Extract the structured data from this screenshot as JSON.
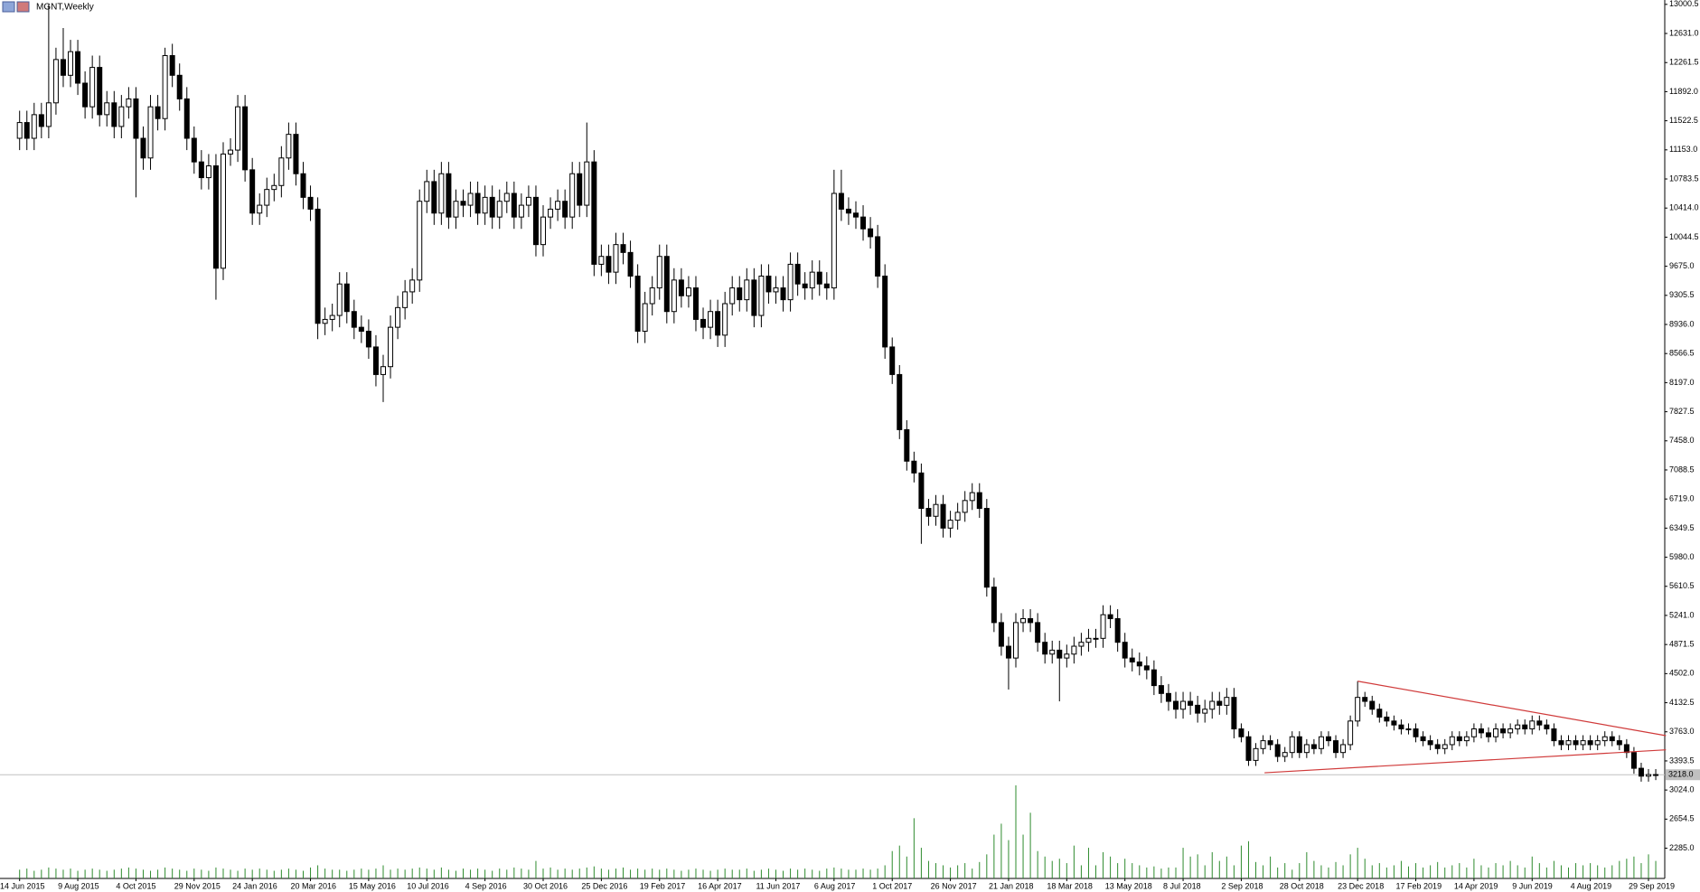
{
  "chart_data": {
    "type": "candlestick",
    "title": "MGNT,Weekly",
    "categories": [
      "14 Jun 2015",
      null,
      null,
      null,
      null,
      null,
      null,
      null,
      "9 Aug 2015",
      null,
      null,
      null,
      null,
      null,
      null,
      null,
      "4 Oct 2015",
      null,
      null,
      null,
      null,
      null,
      null,
      null,
      "29 Nov 2015",
      null,
      null,
      null,
      null,
      null,
      null,
      null,
      "24 Jan 2016",
      null,
      null,
      null,
      null,
      null,
      null,
      null,
      "20 Mar 2016",
      null,
      null,
      null,
      null,
      null,
      null,
      null,
      "15 May 2016",
      null,
      null,
      null,
      null,
      null,
      null,
      null,
      "10 Jul 2016",
      null,
      null,
      null,
      null,
      null,
      null,
      null,
      "4 Sep 2016",
      null,
      null,
      null,
      null,
      null,
      null,
      null,
      "30 Oct 2016",
      null,
      null,
      null,
      null,
      null,
      null,
      null,
      "25 Dec 2016",
      null,
      null,
      null,
      null,
      null,
      null,
      null,
      "19 Feb 2017",
      null,
      null,
      null,
      null,
      null,
      null,
      null,
      "16 Apr 2017",
      null,
      null,
      null,
      null,
      null,
      null,
      null,
      "11 Jun 2017",
      null,
      null,
      null,
      null,
      null,
      null,
      null,
      "6 Aug 2017",
      null,
      null,
      null,
      null,
      null,
      null,
      null,
      "1 Oct 2017",
      null,
      null,
      null,
      null,
      null,
      null,
      null,
      "26 Nov 2017",
      null,
      null,
      null,
      null,
      null,
      null,
      null,
      "21 Jan 2018",
      null,
      null,
      null,
      null,
      null,
      null,
      null,
      "18 Mar 2018",
      null,
      null,
      null,
      null,
      null,
      null,
      null,
      "13 May 2018",
      null,
      null,
      null,
      null,
      null,
      null,
      null,
      "8 Jul 2018",
      null,
      null,
      null,
      null,
      null,
      null,
      null,
      "2 Sep 2018",
      null,
      null,
      null,
      null,
      null,
      null,
      null,
      "28 Oct 2018",
      null,
      null,
      null,
      null,
      null,
      null,
      null,
      "23 Dec 2018",
      null,
      null,
      null,
      null,
      null,
      null,
      null,
      "17 Feb 2019",
      null,
      null,
      null,
      null,
      null,
      null,
      null,
      "14 Apr 2019",
      null,
      null,
      null,
      null,
      null,
      null,
      null,
      "9 Jun 2019",
      null,
      null,
      null,
      null,
      null,
      null,
      null,
      "4 Aug 2019",
      null,
      null,
      null,
      null,
      null,
      null,
      null,
      "29 Sep 2019",
      null
    ],
    "open": [
      11300,
      11500,
      11300,
      11600,
      11450,
      11750,
      12300,
      12100,
      12400,
      12000,
      11700,
      12200,
      11600,
      11750,
      11450,
      11700,
      11800,
      11300,
      11050,
      11700,
      11550,
      12350,
      12100,
      11800,
      11300,
      11000,
      10800,
      10950,
      9650,
      11100,
      11150,
      11700,
      10900,
      10350,
      10450,
      10650,
      10700,
      11050,
      11350,
      10850,
      10550,
      10400,
      8950,
      9000,
      9050,
      9450,
      9100,
      8900,
      8850,
      8650,
      8300,
      8400,
      8900,
      9150,
      9350,
      9500,
      10500,
      10750,
      10350,
      10850,
      10300,
      10500,
      10450,
      10600,
      10350,
      10550,
      10300,
      10500,
      10600,
      10300,
      10450,
      10550,
      9950,
      10300,
      10400,
      10500,
      10300,
      10850,
      10450,
      11000,
      9700,
      9800,
      9600,
      9950,
      9850,
      9550,
      8850,
      9200,
      9400,
      9800,
      9100,
      9500,
      9300,
      9400,
      9000,
      8900,
      9100,
      8800,
      9200,
      9400,
      9250,
      9500,
      9050,
      9550,
      9350,
      9400,
      9250,
      9700,
      9450,
      9400,
      9600,
      9450,
      9400,
      10600,
      10400,
      10350,
      10300,
      10150,
      10050,
      9550,
      8650,
      8300,
      7600,
      7200,
      7050,
      6600,
      6500,
      6650,
      6350,
      6450,
      6550,
      6700,
      6800,
      6600,
      5600,
      5150,
      4850,
      4700,
      5150,
      5200,
      5150,
      4900,
      4750,
      4800,
      4700,
      4750,
      4850,
      4900,
      4950,
      4950,
      5250,
      5200,
      4900,
      4700,
      4650,
      4600,
      4550,
      4350,
      4250,
      4150,
      4050,
      4150,
      4100,
      4000,
      4050,
      4150,
      4100,
      4200,
      3800,
      3700,
      3400,
      3550,
      3650,
      3600,
      3450,
      3500,
      3700,
      3500,
      3600,
      3550,
      3700,
      3650,
      3500,
      3600,
      3900,
      4200,
      4150,
      4050,
      3950,
      3900,
      3850,
      3800,
      3800,
      3700,
      3650,
      3600,
      3550,
      3600,
      3700,
      3650,
      3700,
      3800,
      3750,
      3700,
      3800,
      3750,
      3800,
      3850,
      3800,
      3900,
      3850,
      3800,
      3650,
      3600,
      3650,
      3600,
      3650,
      3600,
      3650,
      3700,
      3650,
      3600,
      3500,
      3300,
      3200,
      3220
    ],
    "high": [
      11650,
      11650,
      11750,
      11750,
      13000,
      12450,
      12700,
      12550,
      12550,
      12150,
      12350,
      12350,
      11900,
      11900,
      11850,
      11950,
      11950,
      11450,
      11850,
      11850,
      12450,
      12500,
      12250,
      11950,
      11450,
      11150,
      11100,
      11100,
      11250,
      11300,
      11850,
      11850,
      11050,
      10600,
      10800,
      10850,
      11200,
      11500,
      11500,
      11000,
      10700,
      10550,
      9150,
      9200,
      9600,
      9600,
      9250,
      9050,
      9000,
      8800,
      8550,
      9050,
      9300,
      9500,
      9650,
      10650,
      10900,
      10900,
      11000,
      11000,
      10650,
      10650,
      10750,
      10750,
      10700,
      10700,
      10650,
      10750,
      10750,
      10600,
      10700,
      10700,
      10450,
      10550,
      10650,
      10650,
      11000,
      11000,
      11500,
      11150,
      9950,
      9950,
      10100,
      10100,
      10000,
      9700,
      9350,
      9550,
      9950,
      9950,
      9650,
      9650,
      9550,
      9550,
      9150,
      9250,
      9250,
      9350,
      9550,
      9550,
      9650,
      9650,
      9700,
      9700,
      9550,
      9550,
      9850,
      9850,
      9600,
      9750,
      9750,
      9600,
      10900,
      10900,
      10550,
      10500,
      10450,
      10300,
      10200,
      9700,
      8770,
      8420,
      7720,
      7320,
      7170,
      6720,
      6770,
      6770,
      6570,
      6670,
      6820,
      6920,
      6920,
      6720,
      5720,
      5270,
      4970,
      5270,
      5320,
      5320,
      5270,
      5020,
      4920,
      4920,
      4870,
      4970,
      5020,
      5070,
      5070,
      5370,
      5370,
      5320,
      5020,
      4820,
      4770,
      4720,
      4670,
      4470,
      4370,
      4270,
      4270,
      4270,
      4220,
      4170,
      4270,
      4270,
      4320,
      4320,
      3870,
      3770,
      3620,
      3720,
      3720,
      3670,
      3570,
      3770,
      3770,
      3670,
      3670,
      3770,
      3770,
      3720,
      3670,
      3970,
      4406,
      4270,
      4220,
      4120,
      4020,
      3970,
      3920,
      3870,
      3870,
      3770,
      3720,
      3670,
      3670,
      3770,
      3770,
      3770,
      3870,
      3870,
      3820,
      3870,
      3870,
      3870,
      3920,
      3920,
      3970,
      3970,
      3920,
      3870,
      3720,
      3720,
      3720,
      3720,
      3720,
      3720,
      3770,
      3770,
      3720,
      3670,
      3570,
      3370,
      3290,
      3290
    ],
    "low": [
      11150,
      11150,
      11150,
      11300,
      11300,
      11600,
      11950,
      11950,
      11850,
      11550,
      11550,
      11450,
      11450,
      11300,
      11300,
      11550,
      10550,
      10900,
      10900,
      11400,
      11400,
      11950,
      11650,
      11150,
      10850,
      10650,
      10650,
      9250,
      9500,
      10950,
      11000,
      10750,
      10200,
      10200,
      10300,
      10500,
      10550,
      10900,
      10700,
      10400,
      10250,
      8750,
      8800,
      8850,
      8900,
      8950,
      8750,
      8700,
      8500,
      8150,
      7950,
      8250,
      8750,
      9000,
      9200,
      9350,
      10350,
      10200,
      10200,
      10150,
      10150,
      10300,
      10300,
      10200,
      10200,
      10150,
      10150,
      10350,
      10150,
      10150,
      10300,
      9800,
      9800,
      10150,
      10250,
      10150,
      10150,
      10300,
      10300,
      9550,
      9550,
      9450,
      9450,
      9700,
      9400,
      8700,
      8700,
      9050,
      9250,
      8950,
      8950,
      9150,
      9150,
      8850,
      8750,
      8750,
      8650,
      8650,
      9050,
      9100,
      9100,
      8900,
      8900,
      9200,
      9200,
      9100,
      9100,
      9300,
      9250,
      9250,
      9300,
      9250,
      9250,
      10250,
      10200,
      10150,
      10000,
      9900,
      9400,
      8500,
      8180,
      7480,
      7080,
      6930,
      6150,
      6380,
      6380,
      6230,
      6230,
      6330,
      6430,
      6580,
      6480,
      5480,
      5030,
      4730,
      4300,
      4580,
      5030,
      5030,
      4780,
      4630,
      4630,
      4150,
      4580,
      4630,
      4730,
      4780,
      4830,
      4830,
      5080,
      4780,
      4580,
      4530,
      4480,
      4430,
      4230,
      4130,
      4030,
      3930,
      3930,
      3980,
      3880,
      3880,
      3930,
      3980,
      3980,
      3680,
      3630,
      3330,
      3330,
      3480,
      3530,
      3380,
      3380,
      3430,
      3430,
      3430,
      3480,
      3480,
      3580,
      3430,
      3430,
      3530,
      3830,
      4080,
      3980,
      3880,
      3830,
      3780,
      3730,
      3730,
      3630,
      3580,
      3530,
      3480,
      3480,
      3530,
      3580,
      3580,
      3630,
      3680,
      3630,
      3630,
      3680,
      3680,
      3730,
      3730,
      3730,
      3780,
      3730,
      3580,
      3530,
      3530,
      3530,
      3530,
      3530,
      3530,
      3580,
      3580,
      3530,
      3430,
      3230,
      3130,
      3130,
      3150
    ],
    "close": [
      11500,
      11300,
      11600,
      11450,
      11750,
      12300,
      12100,
      12400,
      12000,
      11700,
      12200,
      11600,
      11750,
      11450,
      11700,
      11800,
      11300,
      11050,
      11700,
      11550,
      12350,
      12100,
      11800,
      11300,
      11000,
      10800,
      10950,
      9650,
      11100,
      11150,
      11700,
      10900,
      10350,
      10450,
      10650,
      10700,
      11050,
      11350,
      10850,
      10550,
      10400,
      8950,
      9000,
      9050,
      9450,
      9100,
      8900,
      8850,
      8650,
      8300,
      8400,
      8900,
      9150,
      9350,
      9500,
      10500,
      10750,
      10350,
      10850,
      10300,
      10500,
      10450,
      10600,
      10350,
      10550,
      10300,
      10500,
      10600,
      10300,
      10450,
      10550,
      9950,
      10300,
      10400,
      10500,
      10300,
      10850,
      10450,
      11000,
      9700,
      9800,
      9600,
      9950,
      9850,
      9550,
      8850,
      9200,
      9400,
      9800,
      9100,
      9500,
      9300,
      9400,
      9000,
      8900,
      9100,
      8800,
      9200,
      9400,
      9250,
      9500,
      9050,
      9550,
      9350,
      9400,
      9250,
      9700,
      9450,
      9400,
      9600,
      9450,
      9400,
      10600,
      10400,
      10350,
      10300,
      10150,
      10050,
      9550,
      8650,
      8300,
      7600,
      7200,
      7050,
      6600,
      6500,
      6650,
      6350,
      6450,
      6550,
      6700,
      6800,
      6600,
      5600,
      5150,
      4850,
      4700,
      5150,
      5200,
      5150,
      4900,
      4750,
      4800,
      4700,
      4750,
      4850,
      4900,
      4950,
      4950,
      5250,
      5200,
      4900,
      4700,
      4650,
      4600,
      4550,
      4350,
      4250,
      4150,
      4050,
      4150,
      4100,
      4000,
      4050,
      4150,
      4100,
      4200,
      3800,
      3700,
      3400,
      3550,
      3650,
      3600,
      3450,
      3500,
      3700,
      3500,
      3600,
      3550,
      3700,
      3650,
      3500,
      3600,
      3900,
      4200,
      4150,
      4050,
      3950,
      3900,
      3850,
      3800,
      3800,
      3700,
      3650,
      3600,
      3550,
      3600,
      3700,
      3650,
      3700,
      3800,
      3750,
      3700,
      3800,
      3750,
      3800,
      3850,
      3800,
      3900,
      3850,
      3800,
      3650,
      3600,
      3650,
      3600,
      3650,
      3600,
      3650,
      3700,
      3650,
      3600,
      3500,
      3300,
      3200,
      3220,
      3218
    ],
    "volume": [
      8,
      9,
      7,
      8,
      10,
      9,
      8,
      9,
      7,
      8,
      9,
      8,
      7,
      8,
      9,
      10,
      9,
      8,
      7,
      8,
      10,
      9,
      8,
      7,
      9,
      8,
      7,
      10,
      9,
      8,
      7,
      9,
      8,
      9,
      8,
      7,
      8,
      9,
      8,
      7,
      10,
      12,
      9,
      8,
      8,
      7,
      8,
      9,
      8,
      9,
      12,
      8,
      9,
      8,
      9,
      10,
      9,
      8,
      10,
      8,
      7,
      9,
      8,
      9,
      8,
      7,
      9,
      8,
      10,
      9,
      8,
      16,
      9,
      10,
      8,
      9,
      8,
      9,
      10,
      11,
      9,
      8,
      9,
      10,
      8,
      9,
      8,
      9,
      8,
      9,
      8,
      7,
      8,
      9,
      8,
      7,
      8,
      9,
      8,
      8,
      9,
      7,
      8,
      9,
      8,
      7,
      9,
      8,
      9,
      8,
      7,
      9,
      10,
      9,
      8,
      8,
      9,
      8,
      9,
      12,
      25,
      30,
      20,
      55,
      28,
      16,
      14,
      12,
      10,
      12,
      14,
      9,
      15,
      22,
      40,
      50,
      35,
      85,
      40,
      60,
      25,
      20,
      16,
      18,
      14,
      30,
      12,
      28,
      12,
      24,
      20,
      14,
      18,
      14,
      12,
      10,
      11,
      9,
      10,
      10,
      28,
      20,
      22,
      12,
      24,
      16,
      20,
      12,
      30,
      34,
      15,
      12,
      20,
      10,
      14,
      8,
      14,
      24,
      16,
      12,
      10,
      15,
      12,
      22,
      28,
      18,
      12,
      14,
      10,
      12,
      16,
      11,
      14,
      10,
      12,
      15,
      10,
      12,
      14,
      10,
      18,
      12,
      10,
      14,
      12,
      16,
      12,
      10,
      20,
      14,
      10,
      16,
      12,
      10,
      14,
      12,
      14,
      12,
      10,
      12,
      16,
      18,
      20,
      14,
      22,
      16
    ],
    "up_color": "#ffffff",
    "down_color": "#000000",
    "outline_color": "#000000",
    "volume_color": "#2e8b2e",
    "ylim": [
      1901,
      13056
    ],
    "yticks": [
      13000.5,
      {
        "value": 12631,
        "label": "12631.0"
      },
      12261.5,
      {
        "value": 11892,
        "label": "11892.0"
      },
      11522.5,
      {
        "value": 11153,
        "label": "11153.0"
      },
      10783.5,
      {
        "value": 10414,
        "label": "10414.0"
      },
      10044.5,
      {
        "value": 9675,
        "label": "9675.0"
      },
      9305.5,
      {
        "value": 8936,
        "label": "8936.0"
      },
      8566.5,
      {
        "value": 8197,
        "label": "8197.0"
      },
      7827.5,
      {
        "value": 7458,
        "label": "7458.0"
      },
      7088.5,
      {
        "value": 6719,
        "label": "6719.0"
      },
      6349.5,
      {
        "value": 5980,
        "label": "5980.0"
      },
      5610.5,
      {
        "value": 5241,
        "label": "5241.0"
      },
      4871.5,
      {
        "value": 4502,
        "label": "4502.0"
      },
      4132.5,
      {
        "value": 3763,
        "label": "3763.0"
      },
      3393.5,
      {
        "value": 3024,
        "label": "3024.0"
      },
      2654.5,
      {
        "value": 2285,
        "label": "2285.0"
      }
    ],
    "grid": false,
    "last_price": {
      "value": 3218,
      "label": "3218.0",
      "color": "#c0c0c0"
    },
    "trendlines": [
      {
        "x": [
          184,
          226.4
        ],
        "y": [
          4406,
          3714
        ],
        "color": "#d03a3a"
      },
      {
        "x": [
          171.2,
          226.4
        ],
        "y": [
          3243,
          3534
        ],
        "color": "#d03a3a"
      }
    ]
  }
}
